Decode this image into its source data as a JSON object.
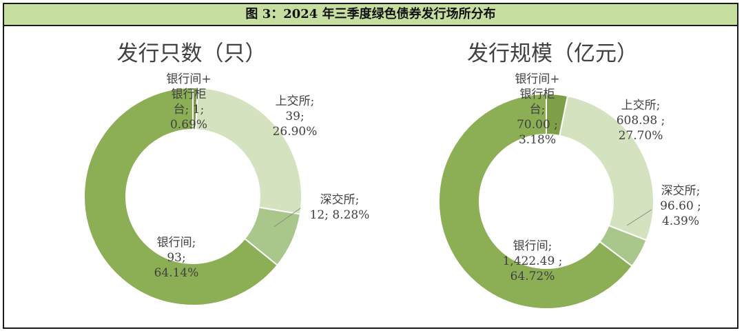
{
  "figure_title": "图 3：2024 年三季度绿色债券发行场所分布",
  "colors": {
    "header_bg": "#c6dfa0",
    "slice_bank_counter": "#7e9e47",
    "slice_sse": "#d4e2bf",
    "slice_szse": "#aac78b",
    "slice_interbank": "#8caf55",
    "text": "#404040",
    "leader": "#8a8a8a"
  },
  "chart_data": [
    {
      "type": "pie",
      "donut": true,
      "title": "发行只数（只）",
      "slices": [
        {
          "name": "银行间+银行柜台",
          "value": 1,
          "percent": 0.69,
          "color": "#7e9e47",
          "label_lines": [
            "银行间+",
            "银行柜",
            "台; 1;",
            "0.69%"
          ]
        },
        {
          "name": "上交所",
          "value": 39,
          "percent": 26.9,
          "color": "#d4e2bf",
          "label_lines": [
            "上交所;",
            "39;",
            "26.90%"
          ]
        },
        {
          "name": "深交所",
          "value": 12,
          "percent": 8.28,
          "color": "#aac78b",
          "label_lines": [
            "深交所;",
            "12; 8.28%"
          ]
        },
        {
          "name": "银行间",
          "value": 93,
          "percent": 64.14,
          "color": "#8caf55",
          "label_lines": [
            "银行间;",
            "93;",
            "64.14%"
          ]
        }
      ]
    },
    {
      "type": "pie",
      "donut": true,
      "title": "发行规模（亿元）",
      "slices": [
        {
          "name": "银行间+银行柜台",
          "value": 70.0,
          "percent": 3.18,
          "color": "#7e9e47",
          "label_lines": [
            "银行间+",
            "银行柜",
            "台;",
            "70.00 ;",
            "3.18%"
          ]
        },
        {
          "name": "上交所",
          "value": 608.98,
          "percent": 27.7,
          "color": "#d4e2bf",
          "label_lines": [
            "上交所;",
            "608.98 ;",
            "27.70%"
          ]
        },
        {
          "name": "深交所",
          "value": 96.6,
          "percent": 4.39,
          "color": "#aac78b",
          "label_lines": [
            "深交所;",
            "96.60 ;",
            "4.39%"
          ]
        },
        {
          "name": "银行间",
          "value": 1422.49,
          "percent": 64.72,
          "color": "#8caf55",
          "label_lines": [
            "银行间;",
            "1,422.49 ;",
            "64.72%"
          ]
        }
      ]
    }
  ]
}
